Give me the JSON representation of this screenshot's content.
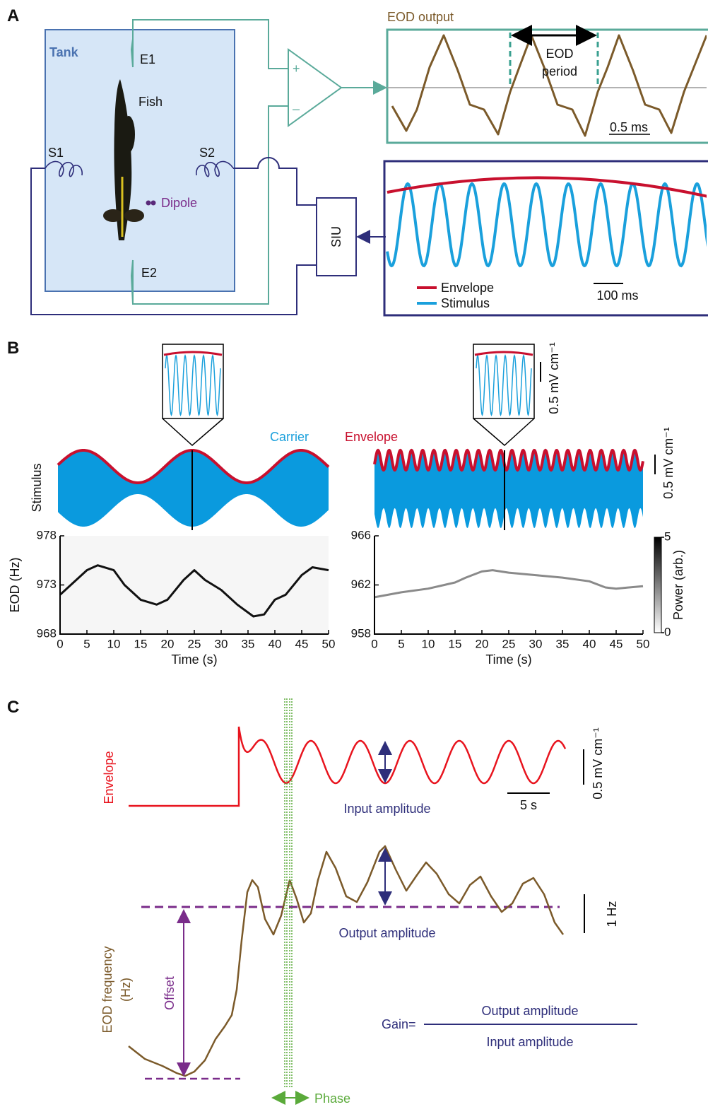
{
  "panel_a": {
    "label": "A",
    "eod_output": "EOD output",
    "tank": "Tank",
    "e1": "E1",
    "e2": "E2",
    "fish": "Fish",
    "s1": "S1",
    "s2": "S2",
    "dipole": "Dipole",
    "siu": "SIU",
    "amp_plus": "+",
    "amp_minus": "–",
    "eod_period": [
      "EOD",
      "period"
    ],
    "scale_eod": "0.5 ms",
    "legend": [
      "Envelope",
      "Stimulus"
    ],
    "scale_stimulus": "100 ms"
  },
  "panel_b": {
    "label": "B",
    "stimulus": "Stimulus",
    "carrier": "Carrier",
    "envelope": "Envelope",
    "scale_bars": [
      "0.5 mV cm⁻¹",
      "0.5 mV cm⁻¹"
    ]
  },
  "chart_data": [
    {
      "type": "line",
      "xlabel": "Time (s)",
      "ylabel": "EOD (Hz)",
      "x": [
        0,
        2,
        5,
        7,
        10,
        12,
        15,
        18,
        20,
        23,
        25,
        27,
        30,
        33,
        36,
        38,
        40,
        42,
        45,
        47,
        50
      ],
      "values": [
        972,
        973,
        974.5,
        975,
        974.5,
        973,
        971.5,
        971,
        971.5,
        973.5,
        974.5,
        973.5,
        972.5,
        971,
        969.8,
        970,
        971.5,
        972,
        974,
        974.8,
        974.5
      ],
      "color": "#111111",
      "xlim": [
        0,
        50
      ],
      "xticks": [
        0,
        5,
        10,
        15,
        20,
        25,
        30,
        35,
        40,
        45,
        50
      ],
      "ylim": [
        968,
        978
      ],
      "yticks": [
        968,
        973,
        978
      ]
    },
    {
      "type": "line",
      "xlabel": "Time (s)",
      "x": [
        0,
        5,
        10,
        13,
        15,
        17,
        20,
        22,
        25,
        30,
        35,
        40,
        43,
        45,
        50
      ],
      "values": [
        961,
        961.4,
        961.7,
        962,
        962.2,
        962.6,
        963.1,
        963.2,
        963,
        962.8,
        962.6,
        962.3,
        961.8,
        961.7,
        961.9
      ],
      "color": "#8a8a8a",
      "xlim": [
        0,
        50
      ],
      "xticks": [
        0,
        5,
        10,
        15,
        20,
        25,
        30,
        35,
        40,
        45,
        50
      ],
      "ylim": [
        958,
        966
      ],
      "yticks": [
        958,
        962,
        966
      ],
      "colorbar": {
        "label": "Power (arb.)",
        "ticks": [
          0,
          5
        ]
      }
    }
  ],
  "panel_c": {
    "label": "C",
    "envelope": "Envelope",
    "input_amplitude": "Input amplitude",
    "scale_time": "5 s",
    "scale_stimulus": "0.5 mV cm⁻¹",
    "output_amplitude": "Output amplitude",
    "scale_frequency": "1 Hz",
    "eod_frequency": [
      "EOD frequency",
      "(Hz)"
    ],
    "offset": "Offset",
    "gain": "Gain=",
    "gain_numerator": "Output amplitude",
    "gain_denominator": "Input amplitude",
    "phase": "Phase"
  }
}
